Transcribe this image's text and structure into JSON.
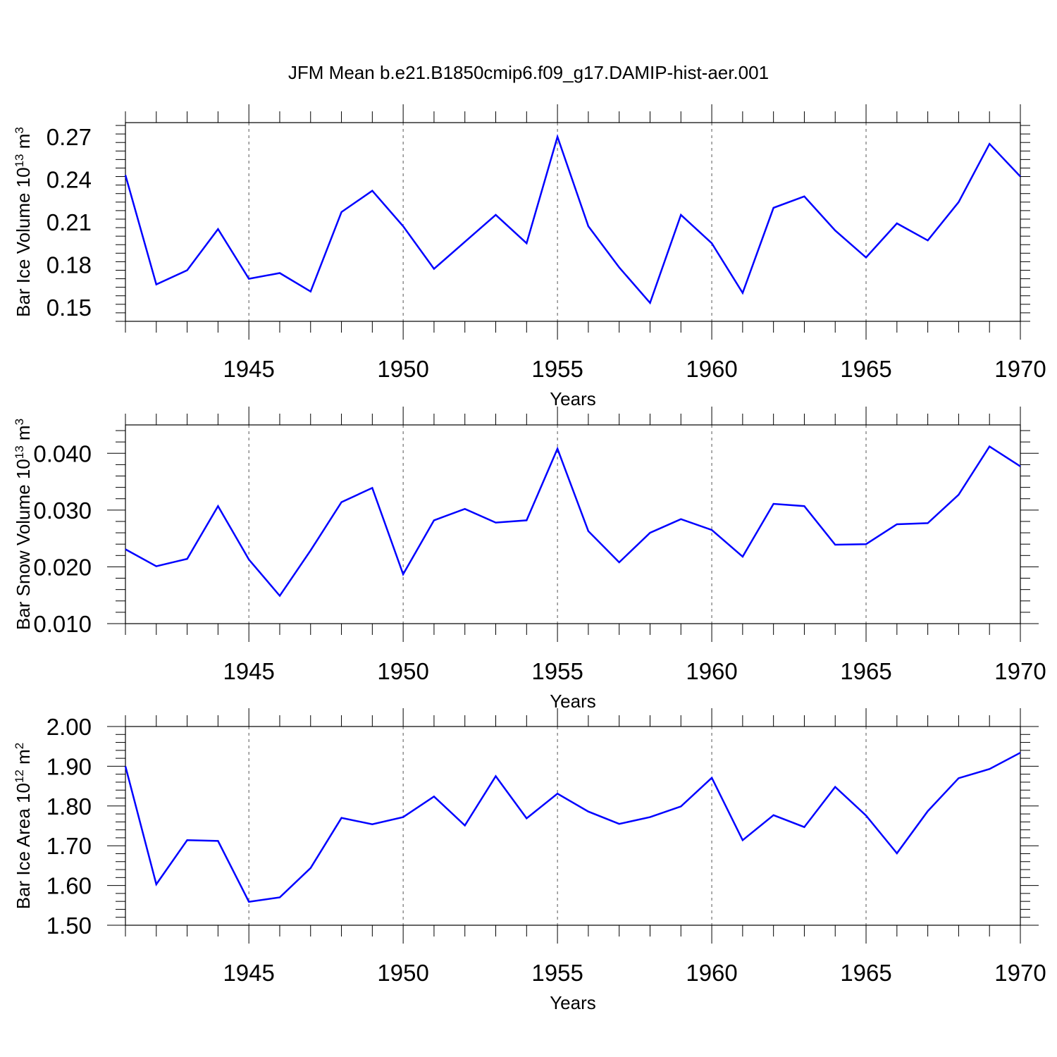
{
  "title": "JFM Mean b.e21.B1850cmip6.f09_g17.DAMIP-hist-aer.001",
  "line_color": "#0000ff",
  "chart_data": [
    {
      "type": "line",
      "xlabel": "Years",
      "ylabel": "Bar Ice Volume 10",
      "ylabel_exp": "13",
      "ylabel_unit": " m",
      "ylabel_unit_exp": "3",
      "xlim": [
        1941,
        1970
      ],
      "ylim": [
        0.14,
        0.28
      ],
      "x_ticks": [
        1945,
        1950,
        1955,
        1960,
        1965,
        1970
      ],
      "y_ticks": [
        0.15,
        0.18,
        0.21,
        0.24,
        0.27
      ],
      "y_tick_labels": [
        "0.15",
        "0.18",
        "0.21",
        "0.24",
        "0.27"
      ],
      "grid": "dashed vertical at major x ticks",
      "x": [
        1941,
        1942,
        1943,
        1944,
        1945,
        1946,
        1947,
        1948,
        1949,
        1950,
        1951,
        1952,
        1953,
        1954,
        1955,
        1956,
        1957,
        1958,
        1959,
        1960,
        1961,
        1962,
        1963,
        1964,
        1965,
        1966,
        1967,
        1968,
        1969,
        1970
      ],
      "values": [
        0.243,
        0.166,
        0.176,
        0.205,
        0.17,
        0.174,
        0.161,
        0.217,
        0.232,
        0.207,
        0.177,
        0.196,
        0.215,
        0.195,
        0.27,
        0.207,
        0.178,
        0.153,
        0.215,
        0.195,
        0.16,
        0.22,
        0.228,
        0.204,
        0.185,
        0.209,
        0.197,
        0.224,
        0.265,
        0.242
      ]
    },
    {
      "type": "line",
      "xlabel": "Years",
      "ylabel": "Bar Snow Volume 10",
      "ylabel_exp": "13",
      "ylabel_unit": " m",
      "ylabel_unit_exp": "3",
      "xlim": [
        1941,
        1970
      ],
      "ylim": [
        0.01,
        0.045
      ],
      "x_ticks": [
        1945,
        1950,
        1955,
        1960,
        1965,
        1970
      ],
      "y_ticks": [
        0.01,
        0.02,
        0.03,
        0.04
      ],
      "y_tick_labels": [
        "0.010",
        "0.020",
        "0.030",
        "0.040"
      ],
      "grid": "dashed vertical at major x ticks",
      "x": [
        1941,
        1942,
        1943,
        1944,
        1945,
        1946,
        1947,
        1948,
        1949,
        1950,
        1951,
        1952,
        1953,
        1954,
        1955,
        1956,
        1957,
        1958,
        1959,
        1960,
        1961,
        1962,
        1963,
        1964,
        1965,
        1966,
        1967,
        1968,
        1969,
        1970
      ],
      "values": [
        0.0231,
        0.0201,
        0.0214,
        0.0307,
        0.0213,
        0.0149,
        0.0229,
        0.0314,
        0.0339,
        0.0187,
        0.0282,
        0.0302,
        0.0278,
        0.0282,
        0.0408,
        0.0263,
        0.0208,
        0.026,
        0.0284,
        0.0265,
        0.0218,
        0.0311,
        0.0307,
        0.0239,
        0.024,
        0.0275,
        0.0277,
        0.0327,
        0.0412,
        0.0377
      ]
    },
    {
      "type": "line",
      "xlabel": "Years",
      "ylabel": "Bar Ice Area 10",
      "ylabel_exp": "12",
      "ylabel_unit": " m",
      "ylabel_unit_exp": "2",
      "xlim": [
        1941,
        1970
      ],
      "ylim": [
        1.5,
        2.0
      ],
      "x_ticks": [
        1945,
        1950,
        1955,
        1960,
        1965,
        1970
      ],
      "y_ticks": [
        1.5,
        1.6,
        1.7,
        1.8,
        1.9,
        2.0
      ],
      "y_tick_labels": [
        "1.50",
        "1.60",
        "1.70",
        "1.80",
        "1.90",
        "2.00"
      ],
      "grid": "dashed vertical at major x ticks",
      "x": [
        1941,
        1942,
        1943,
        1944,
        1945,
        1946,
        1947,
        1948,
        1949,
        1950,
        1951,
        1952,
        1953,
        1954,
        1955,
        1956,
        1957,
        1958,
        1959,
        1960,
        1961,
        1962,
        1963,
        1964,
        1965,
        1966,
        1967,
        1968,
        1969,
        1970
      ],
      "values": [
        1.9,
        1.603,
        1.714,
        1.712,
        1.559,
        1.57,
        1.644,
        1.77,
        1.754,
        1.772,
        1.824,
        1.751,
        1.875,
        1.769,
        1.831,
        1.786,
        1.755,
        1.772,
        1.799,
        1.871,
        1.714,
        1.777,
        1.747,
        1.848,
        1.776,
        1.681,
        1.787,
        1.87,
        1.893,
        1.934
      ]
    }
  ]
}
